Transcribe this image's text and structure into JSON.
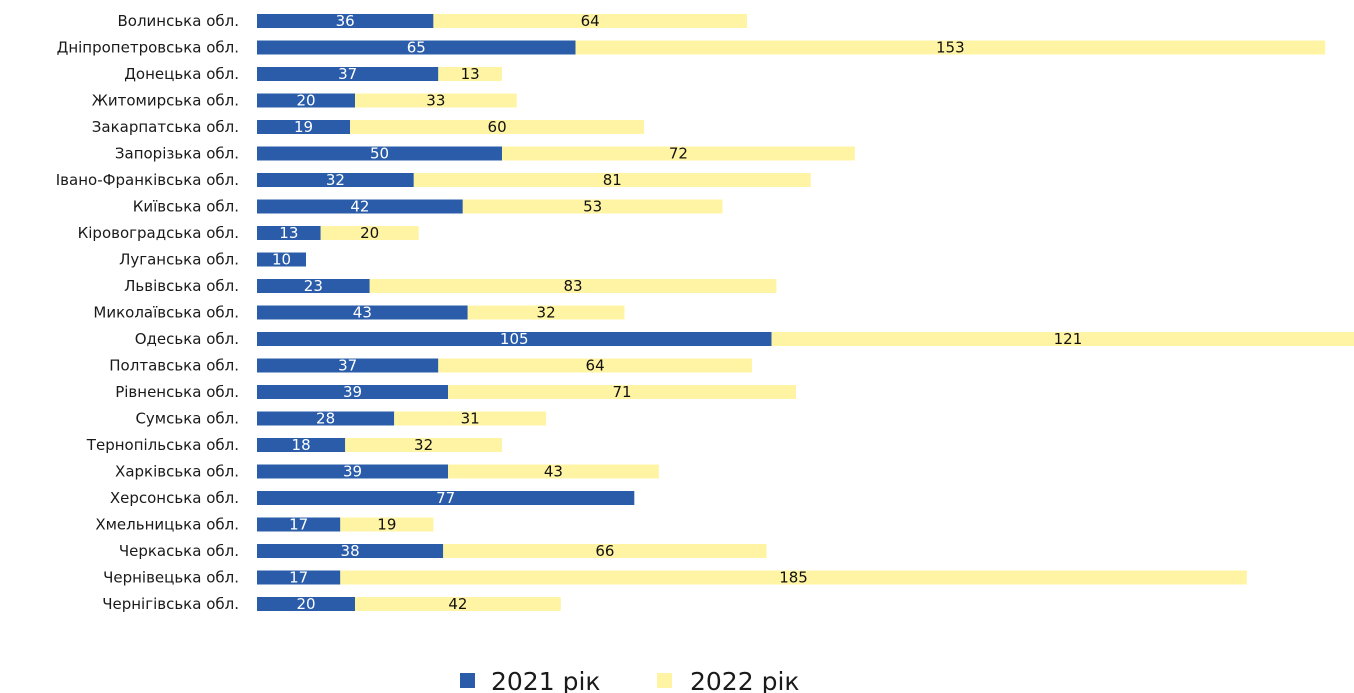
{
  "chart_data": {
    "type": "bar",
    "orientation": "horizontal",
    "stacked": true,
    "categories": [
      "Волинська обл.",
      "Дніпропетровська обл.",
      "Донецька обл.",
      "Житомирська обл.",
      "Закарпатська обл.",
      "Запорізька обл.",
      "Івано-Франківська обл.",
      "Київська обл.",
      "Кіровоградська обл.",
      "Луганська обл.",
      "Львівська обл.",
      "Миколаївська обл.",
      "Одеська обл.",
      "Полтавська обл.",
      "Рівненська обл.",
      "Сумська обл.",
      "Тернопільська обл.",
      "Харківська обл.",
      "Херсонська обл.",
      "Хмельницька обл.",
      "Черкаська обл.",
      "Чернівецька обл.",
      "Чернігівська обл."
    ],
    "series": [
      {
        "name": "2021 рік",
        "color": "#2a5caa",
        "values": [
          36,
          65,
          37,
          20,
          19,
          50,
          32,
          42,
          13,
          10,
          23,
          43,
          105,
          37,
          39,
          28,
          18,
          39,
          77,
          17,
          38,
          17,
          20
        ]
      },
      {
        "name": "2022 рік",
        "color": "#fff4a3",
        "values": [
          64,
          153,
          13,
          33,
          60,
          72,
          81,
          53,
          20,
          null,
          83,
          32,
          121,
          64,
          71,
          31,
          32,
          43,
          null,
          19,
          66,
          185,
          42
        ]
      }
    ],
    "legend_position": "bottom",
    "grid": false,
    "axes_visible": false,
    "xlim": [
      0,
      226
    ]
  }
}
